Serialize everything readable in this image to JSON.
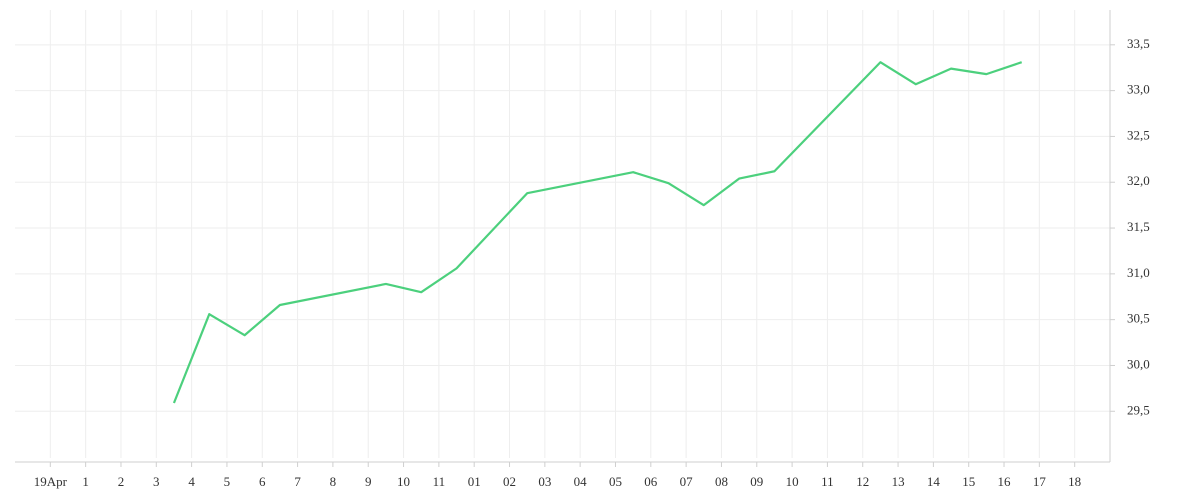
{
  "chart_data": {
    "type": "line",
    "x": [
      3.5,
      4.5,
      5.5,
      6.5,
      9.5,
      10.5,
      11.5,
      13.5,
      16.5,
      17.5,
      18.5,
      19.5,
      20.5,
      23.5,
      24.5,
      25.5,
      26.5,
      27.5
    ],
    "series": [
      {
        "name": null,
        "color": "#4cd07d",
        "values": [
          29.59,
          30.56,
          30.33,
          30.66,
          30.89,
          30.8,
          31.06,
          31.88,
          32.11,
          31.99,
          31.75,
          32.04,
          32.12,
          33.31,
          33.07,
          33.24,
          33.18,
          33.31
        ]
      }
    ],
    "xlim": [
      -1,
      30
    ],
    "xticks": [
      {
        "value": 0,
        "label": "19Apr"
      },
      1,
      2,
      3,
      4,
      5,
      6,
      7,
      8,
      9,
      10,
      11,
      {
        "value": 12,
        "label": "01"
      },
      {
        "value": 13,
        "label": "02"
      },
      {
        "value": 14,
        "label": "03"
      },
      {
        "value": 15,
        "label": "04"
      },
      {
        "value": 16,
        "label": "05"
      },
      {
        "value": 17,
        "label": "06"
      },
      {
        "value": 18,
        "label": "07"
      },
      {
        "value": 19,
        "label": "08"
      },
      {
        "value": 20,
        "label": "09"
      },
      {
        "value": 21,
        "label": "10"
      },
      {
        "value": 22,
        "label": "11"
      },
      {
        "value": 23,
        "label": "12"
      },
      {
        "value": 24,
        "label": "13"
      },
      {
        "value": 25,
        "label": "14"
      },
      {
        "value": 26,
        "label": "15"
      },
      {
        "value": 27,
        "label": "16"
      },
      {
        "value": 28,
        "label": "17"
      },
      {
        "value": 29,
        "label": "18"
      }
    ],
    "ylim": [
      28.99,
      33.88
    ],
    "yticks": [
      {
        "value": 29.5,
        "label": "29,5"
      },
      {
        "value": 30,
        "label": "30,0"
      },
      {
        "value": 30.5,
        "label": "30,5"
      },
      {
        "value": 31,
        "label": "31,0"
      },
      {
        "value": 31.5,
        "label": "31,5"
      },
      {
        "value": 32,
        "label": "32,0"
      },
      {
        "value": 32.5,
        "label": "32,5"
      },
      {
        "value": 33,
        "label": "33,0"
      },
      {
        "value": 33.5,
        "label": "33,5"
      }
    ],
    "grid": true,
    "y_axis_side": "right"
  }
}
